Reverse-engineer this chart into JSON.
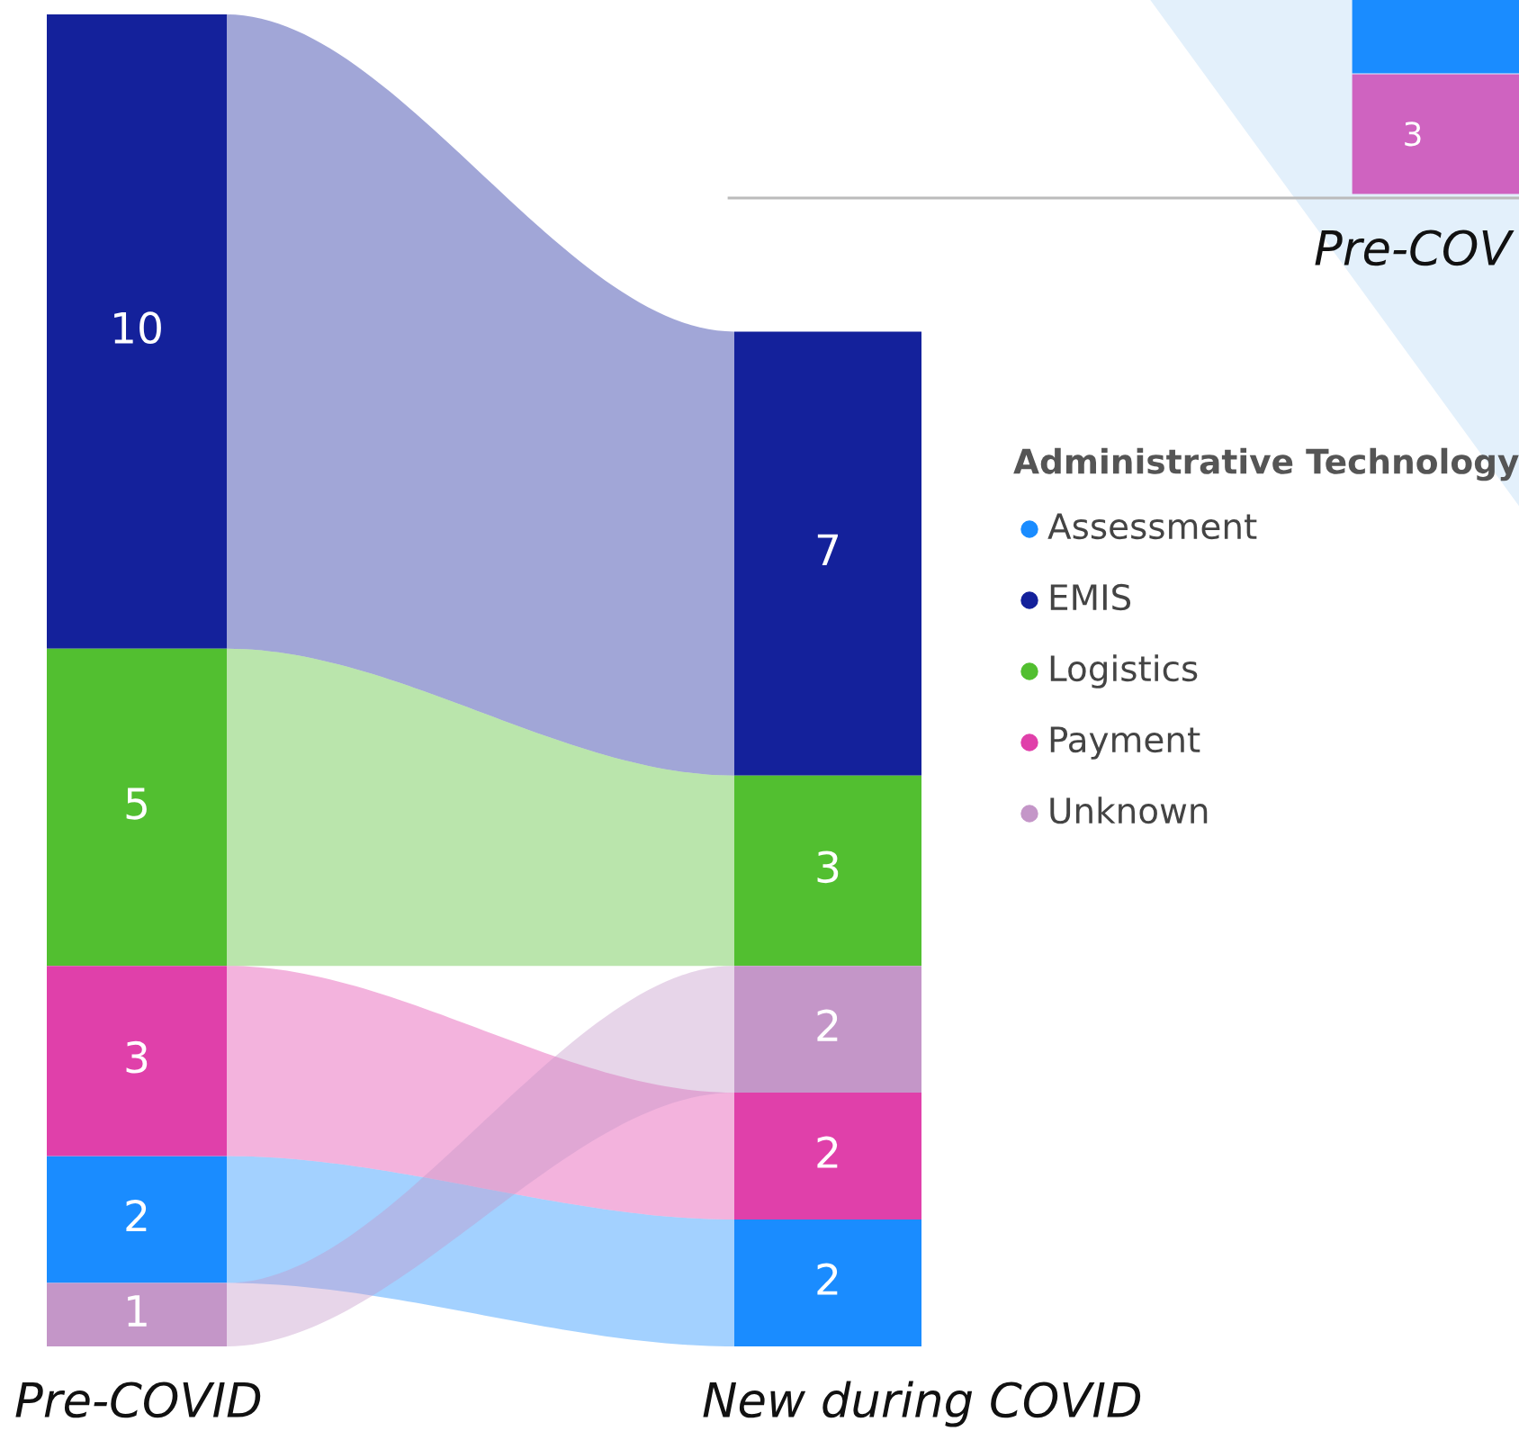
{
  "chart_data": {
    "type": "other",
    "categories": [
      "Pre-COVID",
      "New during COVID"
    ],
    "legend_title": "Administrative Technology",
    "legend": "right",
    "data_labels": true,
    "series": [
      {
        "name": "Assessment",
        "color": "#1a8cff",
        "values": [
          2,
          2
        ]
      },
      {
        "name": "EMIS",
        "color": "#14219b",
        "values": [
          10,
          7
        ]
      },
      {
        "name": "Logistics",
        "color": "#52bf30",
        "values": [
          5,
          3
        ]
      },
      {
        "name": "Payment",
        "color": "#e040aa",
        "values": [
          3,
          2
        ]
      },
      {
        "name": "Unknown",
        "color": "#c496c8",
        "values": [
          1,
          2
        ]
      }
    ],
    "annotations": [
      "3",
      "Pre-COV"
    ]
  }
}
